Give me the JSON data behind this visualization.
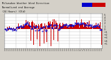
{
  "title": "Milwaukee Weather Wind Direction",
  "subtitle1": "Normalized and Average",
  "subtitle2": "(24 Hours) (Old)",
  "bg_color": "#d4d0c8",
  "plot_bg": "#ffffff",
  "grid_color": "#bbbbbb",
  "bar_color": "#cc0000",
  "dot_color": "#0000cc",
  "ylim": [
    -6.5,
    5.5
  ],
  "yticks": [
    -5,
    -4,
    -3,
    -2,
    -1,
    0,
    1,
    2,
    3,
    4,
    5
  ],
  "n_points": 144,
  "seed": 42
}
